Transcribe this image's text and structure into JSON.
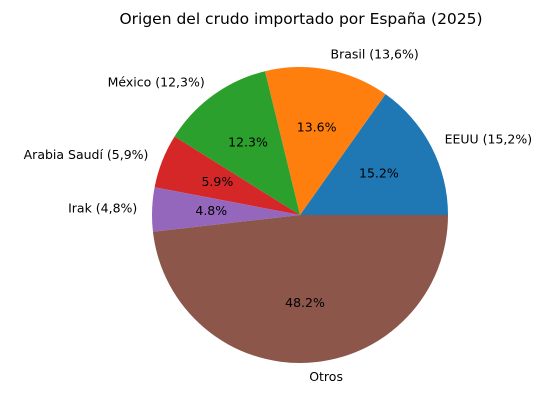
{
  "chart_data": {
    "type": "pie",
    "title": "Origen del crudo importado por España (2025)",
    "start_angle_deg": 0,
    "direction": "counterclockwise",
    "slices": [
      {
        "label": "EEUU (15,2%)",
        "pct_label": "15.2%",
        "value": 15.2,
        "color": "#1f77b4"
      },
      {
        "label": "Brasil (13,6%)",
        "pct_label": "13.6%",
        "value": 13.6,
        "color": "#ff7f0e"
      },
      {
        "label": "México (12,3%)",
        "pct_label": "12.3%",
        "value": 12.3,
        "color": "#2ca02c"
      },
      {
        "label": "Arabia Saudí (5,9%)",
        "pct_label": "5.9%",
        "value": 5.9,
        "color": "#d62728"
      },
      {
        "label": "Irak (4,8%)",
        "pct_label": "4.8%",
        "value": 4.8,
        "color": "#9467bd"
      },
      {
        "label": "Otros",
        "pct_label": "48.2%",
        "value": 48.2,
        "color": "#8c564b"
      }
    ]
  }
}
